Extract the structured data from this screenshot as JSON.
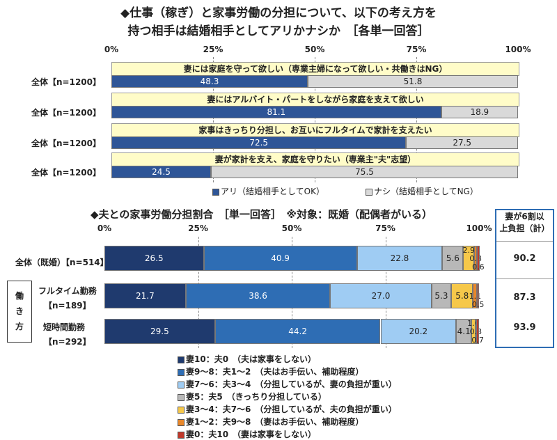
{
  "title_line1": "◆仕事（稼ぎ）と家事労働の分担について、以下の考え方を",
  "title_line2": "持つ相手は結婚相手としてアリかナシか　［各単一回答］",
  "title2": "◆夫との家事労働分担割合　［単一回答］　※対象：既婚（配偶者がいる）",
  "axis_ticks": [
    "0%",
    "25%",
    "50%",
    "75%",
    "100%"
  ],
  "axis_ticks2": [
    "0%",
    "25%",
    "50%",
    "75%",
    "100%"
  ],
  "row_label": "全体【n=1200】",
  "legend1": {
    "ari": "アリ（結婚相手としてOK）",
    "nashi": "ナシ（結婚相手としてNG）"
  },
  "summary": {
    "header_line1": "妻が6割以",
    "header_line2": "上負担（計）",
    "values": [
      "90.2",
      "87.3",
      "93.9"
    ]
  },
  "side_label": [
    "働",
    "き",
    "方"
  ],
  "rows2_labels": [
    "全体（既婚）【n=514】",
    "フルタイム勤務",
    "【n=189】",
    "短時間勤務",
    "【n=292】"
  ],
  "legend2": [
    "妻10：夫0　（夫は家事をしない）",
    "妻9～8：夫1～2　（夫はお手伝い、補助程度）",
    "妻7～6：夫3～4　（分担しているが、妻の負担が重い）",
    "妻5：夫5　（きっちり分担している）",
    "妻3～4：夫7～6　（分担しているが、夫の負担が重い）",
    "妻1～2：夫9～8　（妻はお手伝い、補助程度）",
    "妻0：夫10　（妻は家事をしない）"
  ],
  "colors": {
    "ari": "#2e5597",
    "nashi": "#d9d9d9",
    "seg": [
      "#1f3a6e",
      "#2e6db4",
      "#9fccf3",
      "#b8b8b8",
      "#f6c84a",
      "#e8872a",
      "#c0392b"
    ]
  },
  "chart_data": [
    {
      "type": "bar",
      "orientation": "horizontal",
      "stacked": true,
      "categories": [
        "妻には家庭を守って欲しい（専業主婦になって欲しい・共働きはNG）",
        "妻にはアルバイト・パートをしながら家庭を支えて欲しい",
        "家事はきっちり分担し、お互いにフルタイムで家計を支えたい",
        "妻が家計を支え、家庭を守りたい（専業主\"夫\"志望）"
      ],
      "series": [
        {
          "name": "アリ（結婚相手としてOK）",
          "values": [
            48.3,
            81.1,
            72.5,
            24.5
          ]
        },
        {
          "name": "ナシ（結婚相手としてNG）",
          "values": [
            51.8,
            18.9,
            27.5,
            75.5
          ]
        }
      ],
      "xlim": [
        0,
        100
      ]
    },
    {
      "type": "bar",
      "orientation": "horizontal",
      "stacked": true,
      "categories": [
        "全体（既婚）【n=514】",
        "フルタイム勤務【n=189】",
        "短時間勤務【n=292】"
      ],
      "series": [
        {
          "name": "妻10：夫0",
          "values": [
            26.5,
            21.7,
            29.5
          ]
        },
        {
          "name": "妻9～8：夫1～2",
          "values": [
            40.9,
            38.6,
            44.2
          ]
        },
        {
          "name": "妻7～6：夫3～4",
          "values": [
            22.8,
            27.0,
            20.2
          ]
        },
        {
          "name": "妻5：夫5",
          "values": [
            5.6,
            5.3,
            4.1
          ]
        },
        {
          "name": "妻3～4：夫7～6",
          "values": [
            2.9,
            5.8,
            1.0
          ]
        },
        {
          "name": "妻1～2：夫9～8",
          "values": [
            0.8,
            1.1,
            0.3
          ]
        },
        {
          "name": "妻0：夫10",
          "values": [
            0.6,
            0.5,
            0.7
          ]
        }
      ],
      "value_labels": [
        [
          "26.5",
          "40.9",
          "22.8",
          "5.6",
          "2.9",
          "0.8",
          "0.6"
        ],
        [
          "21.7",
          "38.6",
          "27.0",
          "5.3",
          "5.8",
          "1.1",
          "0.5"
        ],
        [
          "29.5",
          "44.2",
          "20.2",
          "4.1",
          "1.0",
          "0.3",
          "0.7"
        ]
      ],
      "xlim": [
        0,
        100
      ]
    }
  ]
}
